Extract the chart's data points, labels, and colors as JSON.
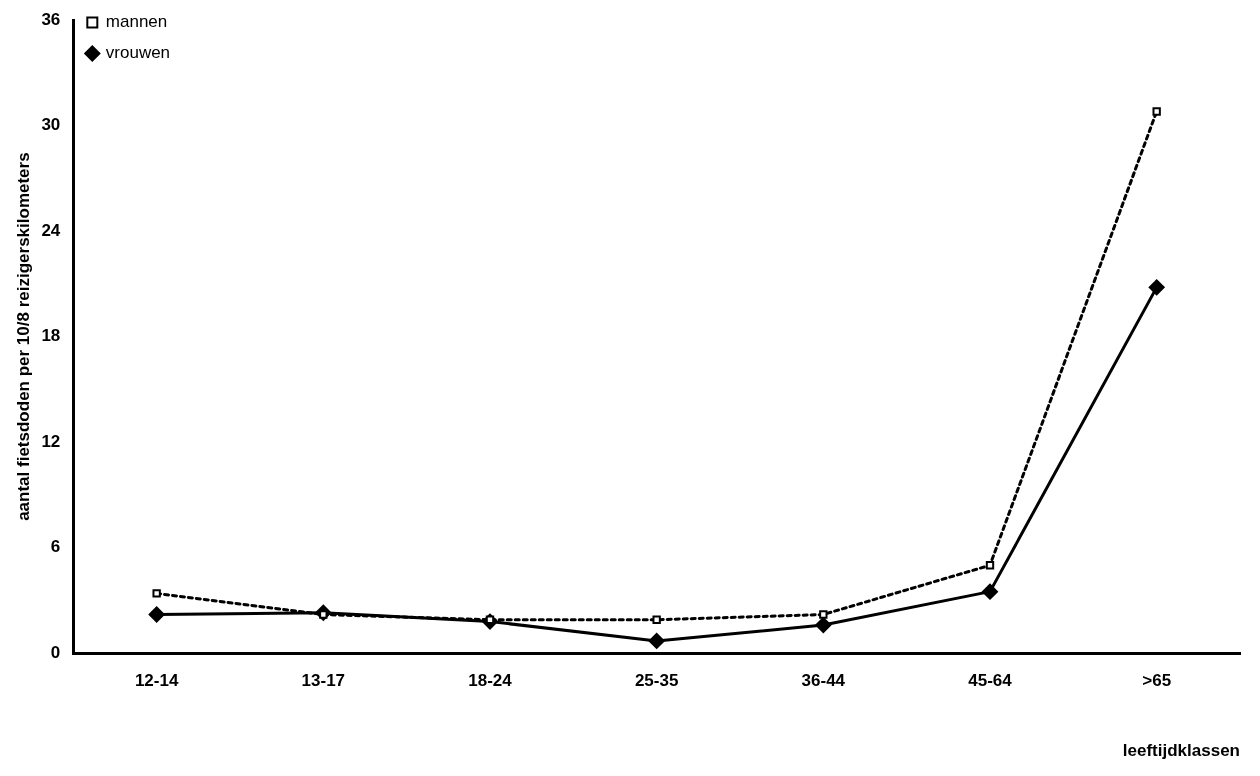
{
  "chart_data": {
    "type": "line",
    "xlabel": "leeftijdklassen",
    "ylabel": "aantal fietsdoden per 10/8 reizigerskilometers",
    "categories": [
      "12-14",
      "13-17",
      "18-24",
      "25-35",
      "36-44",
      "45-64",
      ">65"
    ],
    "series": [
      {
        "name": "mannen",
        "color": "#000000",
        "marker": "square",
        "line_style": "dotted",
        "values": [
          3.4,
          2.2,
          1.9,
          1.9,
          2.2,
          5.0,
          30.8
        ]
      },
      {
        "name": "vrouwen",
        "color": "#000000",
        "marker": "diamond",
        "line_style": "solid",
        "values": [
          2.2,
          2.3,
          1.8,
          0.7,
          1.6,
          3.5,
          20.8
        ]
      }
    ],
    "ylim": [
      0,
      36
    ],
    "yticks": [
      0,
      6,
      12,
      18,
      24,
      30,
      36
    ],
    "grid": false,
    "legend": "top left"
  }
}
